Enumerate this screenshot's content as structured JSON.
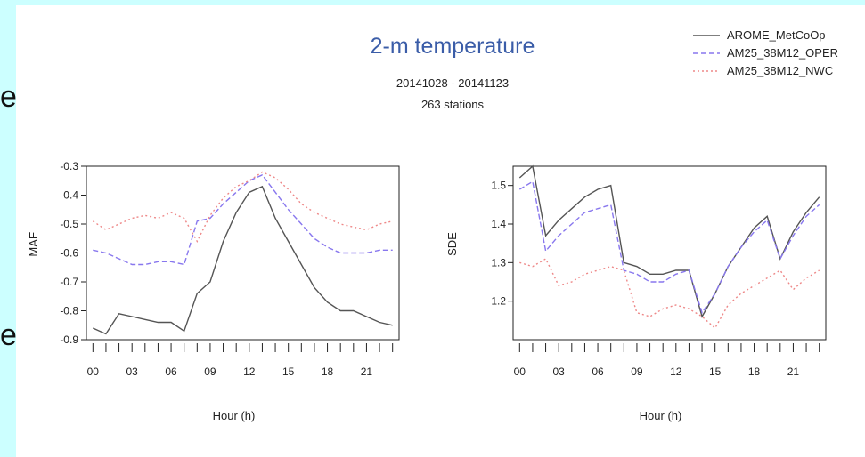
{
  "edge_text": [
    "e",
    "e"
  ],
  "header": {
    "title": "2-m temperature",
    "period": "20141028 - 20141123",
    "stations": "263 stations"
  },
  "legend": [
    {
      "label": "AROME_MetCoOp",
      "color": "#555555",
      "dash": "solid"
    },
    {
      "label": "AM25_38M12_OPER",
      "color": "#8877ee",
      "dash": "dashed"
    },
    {
      "label": "AM25_38M12_NWC",
      "color": "#ee8888",
      "dash": "dotted"
    }
  ],
  "chart_data": [
    {
      "type": "line",
      "xlabel": "Hour (h)",
      "ylabel": "MAE",
      "xlim": [
        -0.5,
        23.5
      ],
      "ylim": [
        -0.9,
        -0.3
      ],
      "xticks": [
        "00",
        "03",
        "06",
        "09",
        "12",
        "15",
        "18",
        "21"
      ],
      "yticks": [
        "-0.3",
        "-0.4",
        "-0.5",
        "-0.6",
        "-0.7",
        "-0.8",
        "-0.9"
      ],
      "x": [
        0,
        1,
        2,
        3,
        4,
        5,
        6,
        7,
        8,
        9,
        10,
        11,
        12,
        13,
        14,
        15,
        16,
        17,
        18,
        19,
        20,
        21,
        22,
        23
      ],
      "series": [
        {
          "name": "AROME_MetCoOp",
          "values": [
            -0.86,
            -0.88,
            -0.81,
            -0.82,
            -0.83,
            -0.84,
            -0.84,
            -0.87,
            -0.74,
            -0.7,
            -0.56,
            -0.46,
            -0.39,
            -0.37,
            -0.48,
            -0.56,
            -0.64,
            -0.72,
            -0.77,
            -0.8,
            -0.8,
            -0.82,
            -0.84,
            -0.85
          ]
        },
        {
          "name": "AM25_38M12_OPER",
          "values": [
            -0.59,
            -0.6,
            -0.62,
            -0.64,
            -0.64,
            -0.63,
            -0.63,
            -0.64,
            -0.49,
            -0.48,
            -0.43,
            -0.39,
            -0.35,
            -0.33,
            -0.39,
            -0.45,
            -0.5,
            -0.55,
            -0.58,
            -0.6,
            -0.6,
            -0.6,
            -0.59,
            -0.59
          ]
        },
        {
          "name": "AM25_38M12_NWC",
          "values": [
            -0.49,
            -0.52,
            -0.5,
            -0.48,
            -0.47,
            -0.48,
            -0.46,
            -0.48,
            -0.56,
            -0.47,
            -0.41,
            -0.37,
            -0.35,
            -0.32,
            -0.34,
            -0.38,
            -0.43,
            -0.46,
            -0.48,
            -0.5,
            -0.51,
            -0.52,
            -0.5,
            -0.49
          ]
        }
      ]
    },
    {
      "type": "line",
      "xlabel": "Hour (h)",
      "ylabel": "SDE",
      "xlim": [
        -0.5,
        23.5
      ],
      "ylim": [
        1.1,
        1.55
      ],
      "xticks": [
        "00",
        "03",
        "06",
        "09",
        "12",
        "15",
        "18",
        "21"
      ],
      "yticks": [
        "1.5",
        "1.4",
        "1.3",
        "1.2"
      ],
      "x": [
        0,
        1,
        2,
        3,
        4,
        5,
        6,
        7,
        8,
        9,
        10,
        11,
        12,
        13,
        14,
        15,
        16,
        17,
        18,
        19,
        20,
        21,
        22,
        23
      ],
      "series": [
        {
          "name": "AROME_MetCoOp",
          "values": [
            1.52,
            1.55,
            1.37,
            1.41,
            1.44,
            1.47,
            1.49,
            1.5,
            1.3,
            1.29,
            1.27,
            1.27,
            1.28,
            1.28,
            1.16,
            1.22,
            1.29,
            1.34,
            1.39,
            1.42,
            1.31,
            1.38,
            1.43,
            1.47
          ]
        },
        {
          "name": "AM25_38M12_OPER",
          "values": [
            1.49,
            1.51,
            1.33,
            1.37,
            1.4,
            1.43,
            1.44,
            1.45,
            1.28,
            1.27,
            1.25,
            1.25,
            1.27,
            1.28,
            1.17,
            1.22,
            1.29,
            1.34,
            1.38,
            1.41,
            1.31,
            1.37,
            1.42,
            1.45
          ]
        },
        {
          "name": "AM25_38M12_NWC",
          "values": [
            1.3,
            1.29,
            1.31,
            1.24,
            1.25,
            1.27,
            1.28,
            1.29,
            1.28,
            1.17,
            1.16,
            1.18,
            1.19,
            1.18,
            1.16,
            1.13,
            1.19,
            1.22,
            1.24,
            1.26,
            1.28,
            1.23,
            1.26,
            1.28
          ]
        }
      ]
    }
  ]
}
